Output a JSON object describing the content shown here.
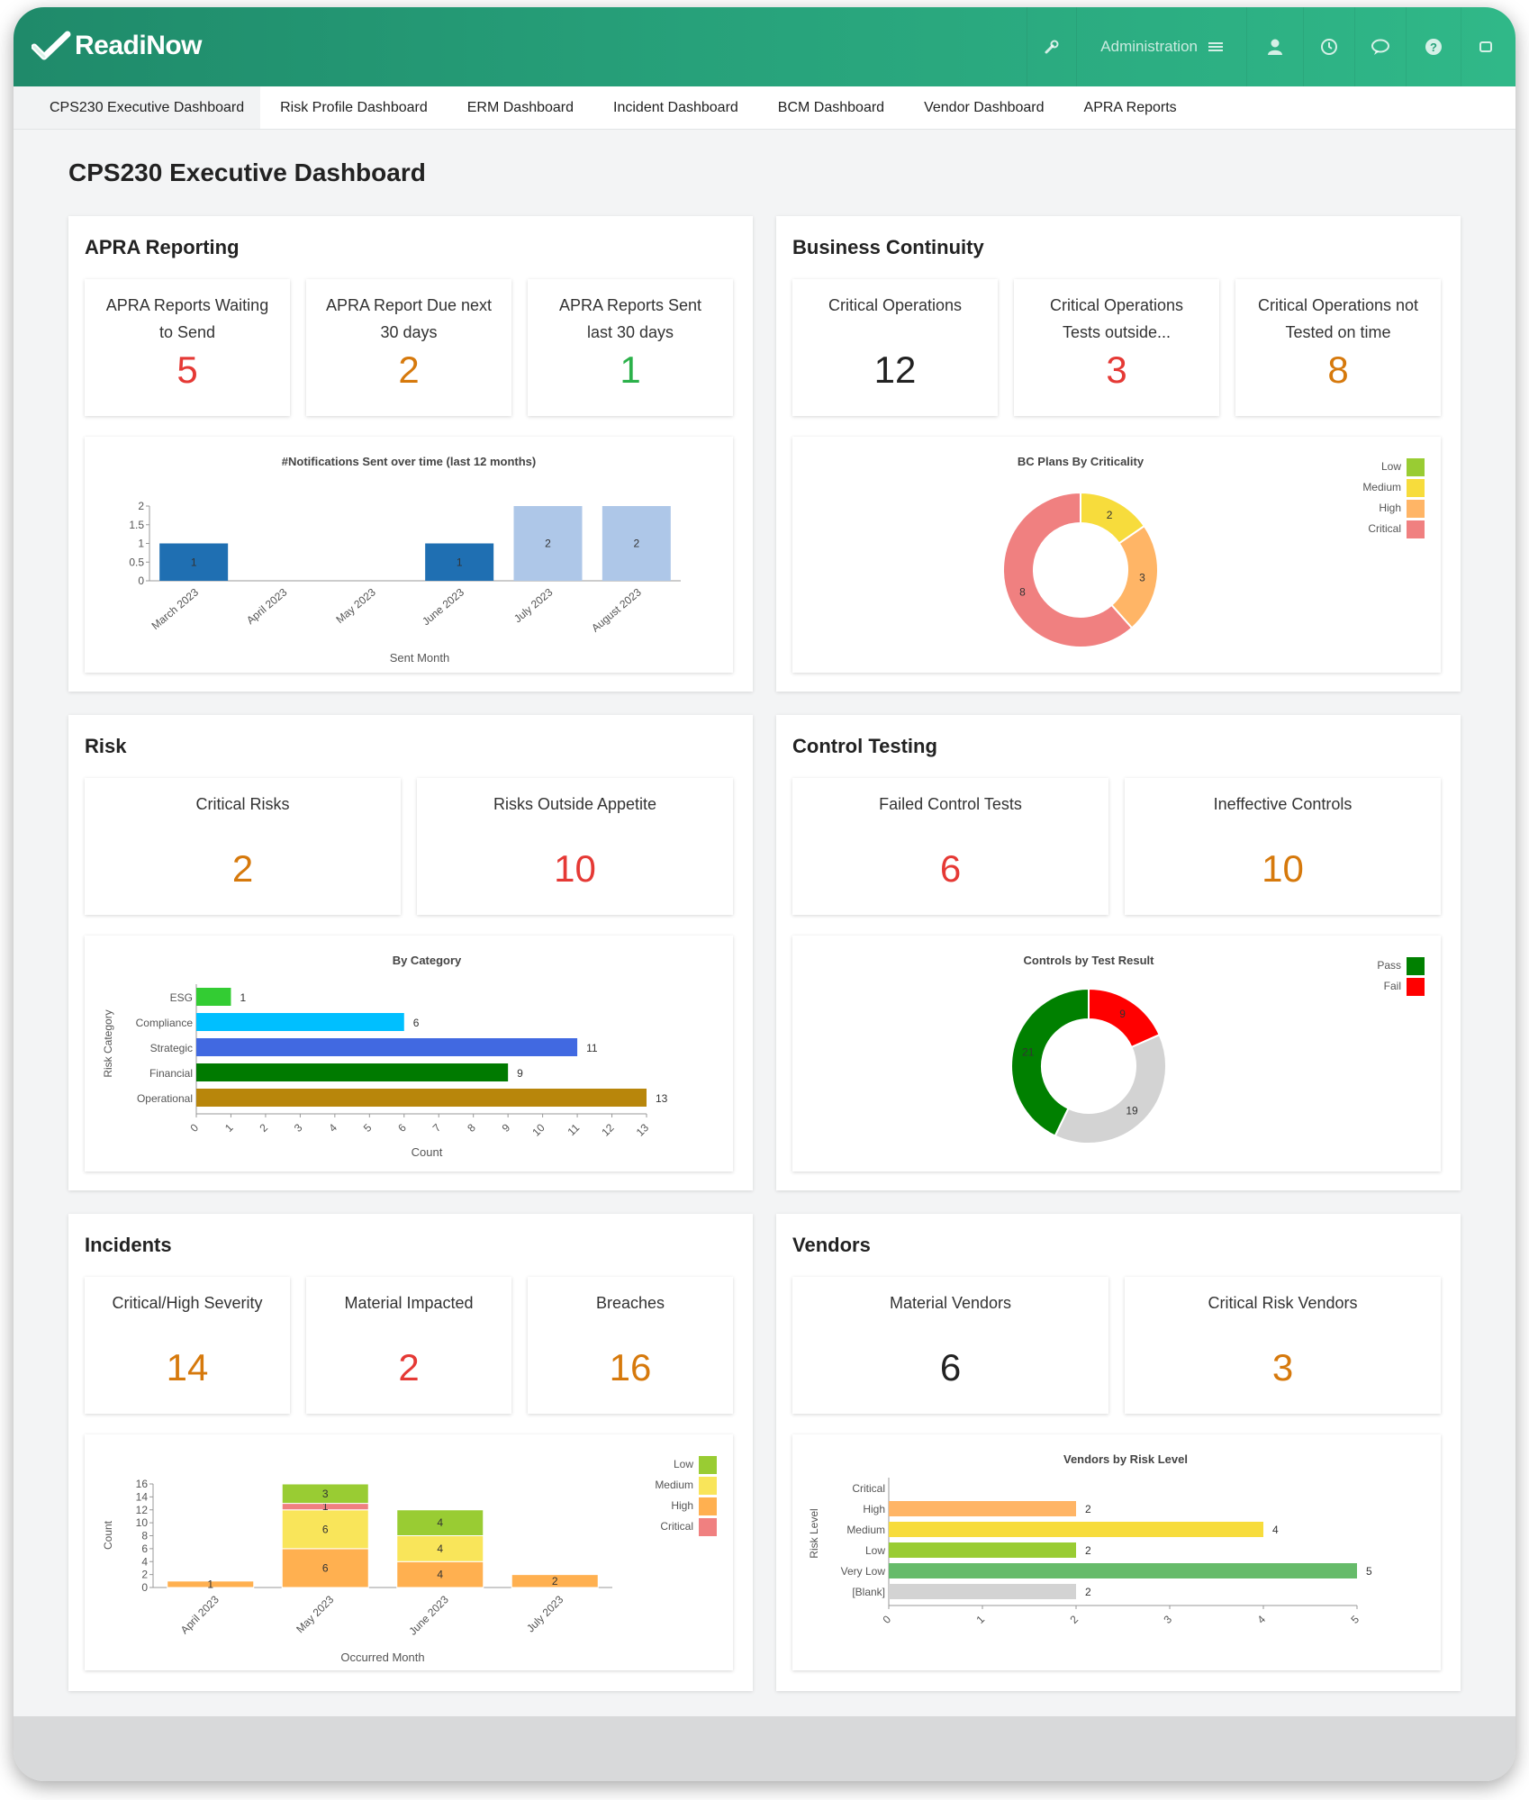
{
  "app": {
    "logo_text": "ReadiNow",
    "admin_label": "Administration"
  },
  "top_icons": [
    "wrench-icon",
    "menu-icon",
    "user-icon",
    "history-icon",
    "chat-icon",
    "help-icon",
    "fullscreen-icon"
  ],
  "tabs": [
    "CPS230 Executive Dashboard",
    "Risk Profile Dashboard",
    "ERM Dashboard",
    "Incident Dashboard",
    "BCM Dashboard",
    "Vendor Dashboard",
    "APRA Reports"
  ],
  "page_title": "CPS230 Executive Dashboard",
  "sections": {
    "apra": {
      "title": "APRA Reporting",
      "kpis": [
        {
          "label_line1": "APRA Reports Waiting",
          "label_line2": "to Send",
          "value": "5",
          "color": "#e53935"
        },
        {
          "label_line1": "APRA Report Due next",
          "label_line2": "30 days",
          "value": "2",
          "color": "#d6790c"
        },
        {
          "label_line1": "APRA Reports Sent",
          "label_line2": "last 30 days",
          "value": "1",
          "color": "#2bb14a"
        }
      ]
    },
    "bc": {
      "title": "Business Continuity",
      "kpis": [
        {
          "label_line1": "Critical Operations",
          "label_line2": "",
          "value": "12",
          "color": "#222222"
        },
        {
          "label_line1": "Critical Operations",
          "label_line2": "Tests outside...",
          "value": "3",
          "color": "#e53935"
        },
        {
          "label_line1": "Critical Operations not",
          "label_line2": "Tested on time",
          "value": "8",
          "color": "#d6790c"
        }
      ]
    },
    "risk": {
      "title": "Risk",
      "kpis": [
        {
          "label_line1": "Critical Risks",
          "label_line2": "",
          "value": "2",
          "color": "#d6790c"
        },
        {
          "label_line1": "Risks Outside Appetite",
          "label_line2": "",
          "value": "10",
          "color": "#e53935"
        }
      ]
    },
    "ct": {
      "title": "Control Testing",
      "kpis": [
        {
          "label_line1": "Failed Control Tests",
          "label_line2": "",
          "value": "6",
          "color": "#e53935"
        },
        {
          "label_line1": "Ineffective Controls",
          "label_line2": "",
          "value": "10",
          "color": "#d6790c"
        }
      ]
    },
    "inc": {
      "title": "Incidents",
      "kpis": [
        {
          "label_line1": "Critical/High Severity",
          "label_line2": "",
          "value": "14",
          "color": "#d6790c"
        },
        {
          "label_line1": "Material Impacted",
          "label_line2": "",
          "value": "2",
          "color": "#e53935"
        },
        {
          "label_line1": "Breaches",
          "label_line2": "",
          "value": "16",
          "color": "#d6790c"
        }
      ]
    },
    "ven": {
      "title": "Vendors",
      "kpis": [
        {
          "label_line1": "Material Vendors",
          "label_line2": "",
          "value": "6",
          "color": "#222222"
        },
        {
          "label_line1": "Critical Risk Vendors",
          "label_line2": "",
          "value": "3",
          "color": "#d6790c"
        }
      ]
    }
  },
  "chart_data": [
    {
      "id": "notifications",
      "type": "bar",
      "title": "#Notifications Sent over time (last 12 months)",
      "xlabel": "Sent Month",
      "ylabel": "",
      "categories": [
        "March 2023",
        "April 2023",
        "May 2023",
        "June 2023",
        "July 2023",
        "August 2023"
      ],
      "values": [
        1,
        0,
        0,
        1,
        2,
        2
      ],
      "bar_colors": [
        "#1f6fb2",
        "#1f6fb2",
        "#1f6fb2",
        "#1f6fb2",
        "#aec7e8",
        "#aec7e8"
      ],
      "yticks": [
        "0",
        "0.5",
        "1",
        "1.5",
        "2"
      ],
      "ylim": [
        0,
        2
      ]
    },
    {
      "id": "bc_plans",
      "type": "pie",
      "title": "BC Plans By Criticality",
      "legend": [
        "Low",
        "Medium",
        "High",
        "Critical"
      ],
      "legend_colors": [
        "#99cc33",
        "#f7dc3c",
        "#ffb566",
        "#f08080"
      ],
      "slices": [
        {
          "name": "Medium",
          "value": 2,
          "color": "#f7dc3c"
        },
        {
          "name": "High",
          "value": 3,
          "color": "#ffb566"
        },
        {
          "name": "Critical",
          "value": 8,
          "color": "#f08080"
        }
      ]
    },
    {
      "id": "risk_category",
      "type": "bar",
      "orientation": "horizontal",
      "title": "By Category",
      "xlabel": "Count",
      "ylabel": "Risk Category",
      "categories": [
        "ESG",
        "Compliance",
        "Strategic",
        "Financial",
        "Operational"
      ],
      "values": [
        1,
        6,
        11,
        9,
        13
      ],
      "bar_colors": [
        "#33cc33",
        "#00bfff",
        "#4169e1",
        "#007a00",
        "#b8860b"
      ],
      "xticks": [
        "0",
        "1",
        "2",
        "3",
        "4",
        "5",
        "6",
        "7",
        "8",
        "9",
        "10",
        "11",
        "12",
        "13"
      ],
      "xlim": [
        0,
        13
      ]
    },
    {
      "id": "controls_result",
      "type": "pie",
      "title": "Controls by Test Result",
      "legend": [
        "Pass",
        "Fail"
      ],
      "legend_colors": [
        "#008000",
        "#ff0000"
      ],
      "slices": [
        {
          "name": "Fail",
          "value": 9,
          "color": "#ff0000"
        },
        {
          "name": "",
          "value": 19,
          "color": "#d3d3d3"
        },
        {
          "name": "Pass",
          "value": 21,
          "color": "#008000"
        }
      ]
    },
    {
      "id": "incidents_month",
      "type": "bar",
      "stacked": true,
      "title": "",
      "xlabel": "Occurred Month",
      "ylabel": "Count",
      "categories": [
        "April 2023",
        "May 2023",
        "June 2023",
        "July 2023"
      ],
      "series": [
        {
          "name": "High",
          "values": [
            1,
            6,
            4,
            2
          ],
          "color": "#ffb050"
        },
        {
          "name": "Medium",
          "values": [
            0,
            6,
            4,
            0
          ],
          "color": "#f9e55a"
        },
        {
          "name": "Critical",
          "values": [
            0,
            1,
            0,
            0
          ],
          "color": "#f08080"
        },
        {
          "name": "Low",
          "values": [
            0,
            3,
            4,
            0
          ],
          "color": "#99cc33"
        }
      ],
      "legend": [
        "Low",
        "Medium",
        "High",
        "Critical"
      ],
      "legend_colors": [
        "#99cc33",
        "#f9e55a",
        "#ffb050",
        "#f08080"
      ],
      "yticks": [
        "0",
        "2",
        "4",
        "6",
        "8",
        "10",
        "12",
        "14",
        "16"
      ],
      "ylim": [
        0,
        16
      ]
    },
    {
      "id": "vendors_risk",
      "type": "bar",
      "orientation": "horizontal",
      "title": "Vendors by Risk Level",
      "xlabel": "",
      "ylabel": "Risk Level",
      "categories": [
        "Critical",
        "High",
        "Medium",
        "Low",
        "Very Low",
        "[Blank]"
      ],
      "values": [
        0,
        2,
        4,
        2,
        5,
        2
      ],
      "bar_colors": [
        "#f08080",
        "#ffb566",
        "#f7dc3c",
        "#99cc33",
        "#66bb6a",
        "#d3d3d3"
      ],
      "xticks": [
        "0",
        "1",
        "2",
        "3",
        "4",
        "5"
      ],
      "xlim": [
        0,
        5
      ]
    }
  ]
}
